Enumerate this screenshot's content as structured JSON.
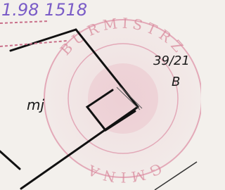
{
  "handwritten_note": "1.98 1518",
  "parcel_number": "39/21",
  "parcel_letter": "B",
  "land_use": "mj",
  "stamp": {
    "top_text": "BURMISTRZ",
    "bottom_text": "GMINA"
  }
}
